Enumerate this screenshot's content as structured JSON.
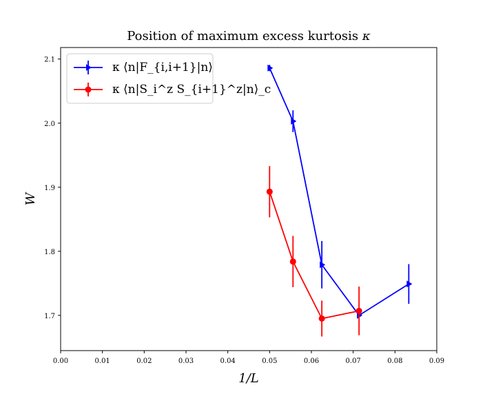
{
  "chart_data": {
    "type": "line",
    "title": "Position of maximum excess kurtosis κ",
    "xlabel": "1/L",
    "ylabel": "W",
    "xlim": [
      0.0,
      0.09
    ],
    "ylim": [
      1.645,
      2.118
    ],
    "xticks": [
      "0.00",
      "0.01",
      "0.02",
      "0.03",
      "0.04",
      "0.05",
      "0.06",
      "0.07",
      "0.08",
      "0.09"
    ],
    "xtick_values": [
      0.0,
      0.01,
      0.02,
      0.03,
      0.04,
      0.05,
      0.06,
      0.07,
      0.08,
      0.09
    ],
    "yticks": [
      "1.7",
      "1.8",
      "1.9",
      "2.0",
      "2.1"
    ],
    "ytick_values": [
      1.7,
      1.8,
      1.9,
      2.0,
      2.1
    ],
    "legend_position": "top-left",
    "series": [
      {
        "name": "κ ⟨n|F_{i,i+1}|n⟩",
        "color": "#0000ff",
        "marker": "triangle-right",
        "x": [
          0.05,
          0.0556,
          0.0625,
          0.0714,
          0.0833
        ],
        "y": [
          2.086,
          2.003,
          1.779,
          1.7,
          1.749
        ],
        "err": [
          0.005,
          0.017,
          0.037,
          0.005,
          0.031
        ]
      },
      {
        "name": "κ ⟨n|S_i^z S_{i+1}^z|n⟩_c",
        "color": "#ff0000",
        "marker": "circle",
        "x": [
          0.05,
          0.0556,
          0.0625,
          0.0714
        ],
        "y": [
          1.893,
          1.784,
          1.695,
          1.707
        ],
        "err": [
          0.04,
          0.04,
          0.028,
          0.038
        ]
      }
    ]
  }
}
